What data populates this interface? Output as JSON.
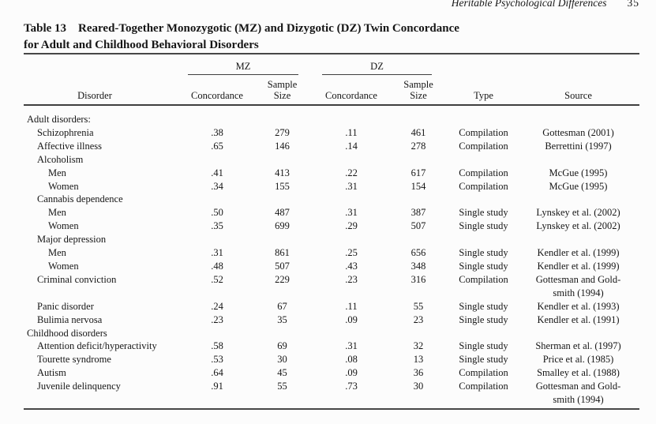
{
  "page": {
    "running_head": "Heritable Psychological Differences",
    "page_number": "35"
  },
  "caption": {
    "label": "Table 13",
    "title_line1": "Reared-Together Monozygotic (MZ) and Dizygotic (DZ) Twin Concordance",
    "title_line2": "for Adult and Childhood Behavioral Disorders"
  },
  "table": {
    "group_mz": "MZ",
    "group_dz": "DZ",
    "col_disorder": "Disorder",
    "col_concordance_mz": "Concordance",
    "col_sample_mz": "Sample Size",
    "col_concordance_dz": "Concordance",
    "col_sample_dz": "Sample Size",
    "col_type": "Type",
    "col_source": "Source",
    "rows": [
      {
        "label": "Adult disorders:",
        "indent": 0,
        "mz_concordance": "",
        "mz_sample": "",
        "dz_concordance": "",
        "dz_sample": "",
        "type": "",
        "source": ""
      },
      {
        "label": "Schizophrenia",
        "indent": 1,
        "mz_concordance": ".38",
        "mz_sample": "279",
        "dz_concordance": ".11",
        "dz_sample": "461",
        "type": "Compilation",
        "source": "Gottesman (2001)"
      },
      {
        "label": "Affective illness",
        "indent": 1,
        "mz_concordance": ".65",
        "mz_sample": "146",
        "dz_concordance": ".14",
        "dz_sample": "278",
        "type": "Compilation",
        "source": "Berrettini (1997)"
      },
      {
        "label": "Alcoholism",
        "indent": 1,
        "mz_concordance": "",
        "mz_sample": "",
        "dz_concordance": "",
        "dz_sample": "",
        "type": "",
        "source": ""
      },
      {
        "label": "Men",
        "indent": 2,
        "mz_concordance": ".41",
        "mz_sample": "413",
        "dz_concordance": ".22",
        "dz_sample": "617",
        "type": "Compilation",
        "source": "McGue (1995)"
      },
      {
        "label": "Women",
        "indent": 2,
        "mz_concordance": ".34",
        "mz_sample": "155",
        "dz_concordance": ".31",
        "dz_sample": "154",
        "type": "Compilation",
        "source": "McGue (1995)"
      },
      {
        "label": "Cannabis dependence",
        "indent": 1,
        "mz_concordance": "",
        "mz_sample": "",
        "dz_concordance": "",
        "dz_sample": "",
        "type": "",
        "source": ""
      },
      {
        "label": "Men",
        "indent": 2,
        "mz_concordance": ".50",
        "mz_sample": "487",
        "dz_concordance": ".31",
        "dz_sample": "387",
        "type": "Single study",
        "source": "Lynskey et al. (2002)"
      },
      {
        "label": "Women",
        "indent": 2,
        "mz_concordance": ".35",
        "mz_sample": "699",
        "dz_concordance": ".29",
        "dz_sample": "507",
        "type": "Single study",
        "source": "Lynskey et al. (2002)"
      },
      {
        "label": "Major depression",
        "indent": 1,
        "mz_concordance": "",
        "mz_sample": "",
        "dz_concordance": "",
        "dz_sample": "",
        "type": "",
        "source": ""
      },
      {
        "label": "Men",
        "indent": 2,
        "mz_concordance": ".31",
        "mz_sample": "861",
        "dz_concordance": ".25",
        "dz_sample": "656",
        "type": "Single study",
        "source": "Kendler et al. (1999)"
      },
      {
        "label": "Women",
        "indent": 2,
        "mz_concordance": ".48",
        "mz_sample": "507",
        "dz_concordance": ".43",
        "dz_sample": "348",
        "type": "Single study",
        "source": "Kendler et al. (1999)"
      },
      {
        "label": "Criminal conviction",
        "indent": 1,
        "mz_concordance": ".52",
        "mz_sample": "229",
        "dz_concordance": ".23",
        "dz_sample": "316",
        "type": "Compilation",
        "source": "Gottesman and Gold-\nsmith (1994)"
      },
      {
        "label": "Panic disorder",
        "indent": 1,
        "mz_concordance": ".24",
        "mz_sample": "67",
        "dz_concordance": ".11",
        "dz_sample": "55",
        "type": "Single study",
        "source": "Kendler et al. (1993)"
      },
      {
        "label": "Bulimia nervosa",
        "indent": 1,
        "mz_concordance": ".23",
        "mz_sample": "35",
        "dz_concordance": ".09",
        "dz_sample": "23",
        "type": "Single study",
        "source": "Kendler et al. (1991)"
      },
      {
        "label": "Childhood disorders",
        "indent": 0,
        "mz_concordance": "",
        "mz_sample": "",
        "dz_concordance": "",
        "dz_sample": "",
        "type": "",
        "source": ""
      },
      {
        "label": "Attention deficit/hyperactivity",
        "indent": 1,
        "mz_concordance": ".58",
        "mz_sample": "69",
        "dz_concordance": ".31",
        "dz_sample": "32",
        "type": "Single study",
        "source": "Sherman et al. (1997)"
      },
      {
        "label": "Tourette syndrome",
        "indent": 1,
        "mz_concordance": ".53",
        "mz_sample": "30",
        "dz_concordance": ".08",
        "dz_sample": "13",
        "type": "Single study",
        "source": "Price et al. (1985)"
      },
      {
        "label": "Autism",
        "indent": 1,
        "mz_concordance": ".64",
        "mz_sample": "45",
        "dz_concordance": ".09",
        "dz_sample": "36",
        "type": "Compilation",
        "source": "Smalley et al. (1988)"
      },
      {
        "label": "Juvenile delinquency",
        "indent": 1,
        "mz_concordance": ".91",
        "mz_sample": "55",
        "dz_concordance": ".73",
        "dz_sample": "30",
        "type": "Compilation",
        "source": "Gottesman and Gold-\nsmith (1994)"
      }
    ]
  }
}
